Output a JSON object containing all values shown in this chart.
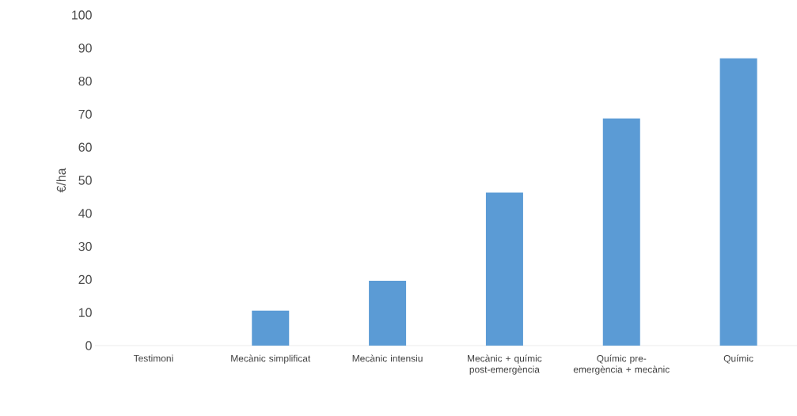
{
  "chart_data": {
    "type": "bar",
    "ylabel": "€/ha",
    "categories": [
      "Testimoni",
      "Mecànic simplificat",
      "Mecànic intensiu",
      "Mecànic + químic post-emergència",
      "Químic pre-emergència + mecànic",
      "Químic"
    ],
    "values": [
      0,
      10.6,
      19.6,
      46.3,
      68.7,
      86.9
    ],
    "color": "#5b9bd5",
    "ylim": [
      0,
      100
    ],
    "yticks": [
      0,
      10,
      20,
      30,
      40,
      50,
      60,
      70,
      80,
      90,
      100
    ],
    "grid": false
  }
}
